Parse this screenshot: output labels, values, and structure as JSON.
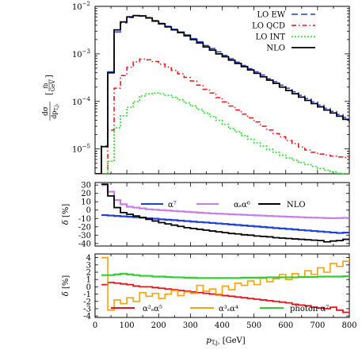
{
  "chart_data": [
    {
      "type": "line",
      "panel": "main",
      "ylabel": "dσ/dp_T,j1 [fb/GeV]",
      "yscale": "log",
      "ylim": [
        3e-06,
        0.01
      ],
      "xlim": [
        0,
        800
      ],
      "yticks": [
        {
          "v": 1e-05,
          "label": "10",
          "exp": "−5"
        },
        {
          "v": 0.0001,
          "label": "10",
          "exp": "−4"
        },
        {
          "v": 0.001,
          "label": "10",
          "exp": "−3"
        },
        {
          "v": 0.01,
          "label": "10",
          "exp": "−2"
        }
      ],
      "legend_position": "top-right",
      "series": [
        {
          "name": "LO EW",
          "color": "#1f3fd6",
          "dash": "8,4",
          "width": 1.5,
          "x": [
            0,
            20,
            40,
            60,
            80,
            100,
            120,
            140,
            160,
            180,
            200,
            220,
            240,
            260,
            280,
            300,
            320,
            340,
            360,
            380,
            400,
            420,
            440,
            460,
            480,
            500,
            520,
            540,
            560,
            580,
            600,
            620,
            640,
            660,
            680,
            700,
            720,
            740,
            760,
            780,
            800
          ],
          "y": [
            2.8e-06,
            1.15e-05,
            0.00042,
            0.0029,
            0.0045,
            0.0058,
            0.0063,
            0.0062,
            0.0058,
            0.005,
            0.0044,
            0.0038,
            0.0033,
            0.0029,
            0.0025,
            0.0021,
            0.0018,
            0.0015,
            0.0013,
            0.0011,
            0.00093,
            0.00079,
            0.00067,
            0.00057,
            0.00049,
            0.00042,
            0.00036,
            0.0003,
            0.00026,
            0.00022,
            0.00019,
            0.00016,
            0.000135,
            0.000115,
            9.8e-05,
            8.4e-05,
            7.2e-05,
            6.2e-05,
            5.3e-05,
            4.6e-05,
            4e-05
          ]
        },
        {
          "name": "LO QCD",
          "color": "#e8121b",
          "dash": "6,3,1.5,3",
          "width": 1.5,
          "x": [
            20,
            40,
            60,
            80,
            100,
            120,
            140,
            160,
            180,
            200,
            220,
            240,
            260,
            280,
            300,
            320,
            340,
            360,
            380,
            400,
            420,
            440,
            460,
            480,
            500,
            520,
            540,
            560,
            580,
            600,
            620,
            640,
            660,
            680,
            700,
            720,
            740,
            760,
            780,
            800
          ],
          "y": [
            3e-06,
            2.5e-05,
            0.00019,
            0.00035,
            0.00052,
            0.00068,
            0.00078,
            0.00075,
            0.00069,
            0.00061,
            0.00053,
            0.00045,
            0.00038,
            0.00032,
            0.00027,
            0.00022,
            0.00018,
            0.00015,
            0.00012,
            9.8e-05,
            8e-05,
            6.6e-05,
            5.4e-05,
            4.5e-05,
            3.7e-05,
            3e-05,
            2.5e-05,
            2.1e-05,
            1.8e-05,
            1.5e-05,
            1.3e-05,
            1.1e-05,
            9.5e-06,
            8.5e-06,
            7.8e-06,
            7.4e-06,
            7.1e-06,
            6.8e-06,
            6.6e-06,
            6.2e-06
          ]
        },
        {
          "name": "LO INT",
          "color": "#2bdc2b",
          "dash": "2,2",
          "width": 1.6,
          "x": [
            20,
            40,
            60,
            80,
            100,
            120,
            140,
            160,
            180,
            200,
            220,
            240,
            260,
            280,
            300,
            320,
            340,
            360,
            380,
            400,
            420,
            440,
            460,
            480,
            500,
            520,
            540,
            560,
            580,
            600,
            620,
            640,
            660,
            680,
            700,
            720,
            740,
            760,
            780,
            800
          ],
          "y": [
            3e-06,
            5.5e-06,
            2.8e-05,
            5e-05,
            7.5e-05,
            0.0001,
            0.00013,
            0.000145,
            0.00015,
            0.000145,
            0.000135,
            0.000122,
            0.000108,
            9.3e-05,
            8e-05,
            6.8e-05,
            5.7e-05,
            4.8e-05,
            4e-05,
            3.3e-05,
            2.7e-05,
            2.3e-05,
            1.9e-05,
            1.6e-05,
            1.35e-05,
            1.15e-05,
            9.8e-06,
            8.5e-06,
            7.4e-06,
            6.5e-06,
            5.8e-06,
            5.2e-06,
            4.7e-06,
            4.3e-06,
            3.9e-06,
            3.6e-06,
            3.3e-06,
            3.1e-06,
            2.9e-06,
            2.8e-06
          ]
        },
        {
          "name": "NLO",
          "color": "#000000",
          "dash": "",
          "width": 1.8,
          "x": [
            0,
            20,
            40,
            60,
            80,
            100,
            120,
            140,
            160,
            180,
            200,
            220,
            240,
            260,
            280,
            300,
            320,
            340,
            360,
            380,
            400,
            420,
            440,
            460,
            480,
            500,
            520,
            540,
            560,
            580,
            600,
            620,
            640,
            660,
            680,
            700,
            720,
            740,
            760,
            780,
            800
          ],
          "y": [
            2.8e-06,
            1.12e-05,
            0.0004,
            0.0032,
            0.0047,
            0.006,
            0.0064,
            0.0063,
            0.0057,
            0.0049,
            0.0043,
            0.0037,
            0.0032,
            0.0028,
            0.0024,
            0.002,
            0.0017,
            0.0014,
            0.0012,
            0.001,
            0.00087,
            0.00074,
            0.00063,
            0.00054,
            0.00046,
            0.00039,
            0.00033,
            0.00028,
            0.00024,
            0.0002,
            0.00017,
            0.000145,
            0.000123,
            0.000105,
            9e-05,
            7.7e-05,
            6.6e-05,
            5.7e-05,
            4.9e-05,
            4.2e-05,
            3.6e-05
          ]
        }
      ]
    },
    {
      "type": "line",
      "panel": "ratio1",
      "ylabel": "δ [%]",
      "ylim": [
        -43,
        33
      ],
      "yticks": [
        -40,
        -30,
        -20,
        -10,
        0,
        10,
        20,
        30
      ],
      "xlim": [
        0,
        800
      ],
      "legend_position": "top",
      "series": [
        {
          "name": "α⁷",
          "color": "#1f3fd6",
          "width": 2.2,
          "x": [
            20,
            40,
            60,
            80,
            100,
            120,
            140,
            160,
            180,
            200,
            220,
            240,
            260,
            280,
            300,
            320,
            340,
            360,
            380,
            400,
            420,
            440,
            460,
            480,
            500,
            520,
            540,
            560,
            580,
            600,
            620,
            640,
            660,
            680,
            700,
            720,
            740,
            760,
            780,
            800
          ],
          "y": [
            -6,
            -6.5,
            -7,
            -7.5,
            -8,
            -8.5,
            -9,
            -9.7,
            -10.3,
            -11,
            -11.5,
            -12,
            -12.6,
            -13.2,
            -13.8,
            -14.3,
            -14.8,
            -15.4,
            -16,
            -16.6,
            -17.2,
            -17.8,
            -18.4,
            -19,
            -19.6,
            -20.2,
            -20.8,
            -21.5,
            -22,
            -22.6,
            -23.2,
            -23.8,
            -24.4,
            -25,
            -25.6,
            -26.2,
            -26.8,
            -27.4,
            -27,
            -26
          ]
        },
        {
          "name": "αₛα⁶",
          "color": "#c77ee8",
          "width": 2.2,
          "x": [
            20,
            40,
            60,
            80,
            100,
            120,
            140,
            160,
            180,
            200,
            220,
            240,
            260,
            280,
            300,
            320,
            340,
            360,
            380,
            400,
            420,
            440,
            460,
            480,
            500,
            520,
            540,
            560,
            580,
            600,
            620,
            640,
            660,
            680,
            700,
            720,
            740,
            760,
            780,
            800
          ],
          "y": [
            30,
            22,
            12,
            7,
            4,
            3,
            2,
            1,
            0.5,
            0,
            -0.5,
            -1,
            -1.5,
            -2,
            -2.5,
            -3,
            -3.5,
            -4,
            -4.3,
            -4.6,
            -5,
            -5.3,
            -5.6,
            -6,
            -6.3,
            -6.6,
            -7,
            -7.3,
            -7.6,
            -8,
            -8.2,
            -8.5,
            -8.8,
            -9,
            -9.2,
            -9.5,
            -9.7,
            -9.5,
            -9.2,
            -9
          ]
        },
        {
          "name": "NLO",
          "color": "#000000",
          "width": 1.8,
          "x": [
            20,
            40,
            60,
            80,
            100,
            120,
            140,
            160,
            180,
            200,
            220,
            240,
            260,
            280,
            300,
            320,
            340,
            360,
            380,
            400,
            420,
            440,
            460,
            480,
            500,
            520,
            540,
            560,
            580,
            600,
            620,
            640,
            660,
            680,
            700,
            720,
            740,
            760,
            780,
            800
          ],
          "y": [
            31,
            17,
            3,
            -3,
            -5,
            -7,
            -9,
            -11,
            -13,
            -15,
            -16.5,
            -18,
            -19.5,
            -21,
            -22,
            -23,
            -24,
            -25,
            -26,
            -27,
            -28,
            -28.5,
            -29.5,
            -30,
            -31,
            -31.5,
            -32,
            -33,
            -33.5,
            -34,
            -34.5,
            -35,
            -35.5,
            -36,
            -36.5,
            -38,
            -37,
            -36.5,
            -35,
            -34
          ]
        }
      ]
    },
    {
      "type": "line",
      "panel": "ratio2",
      "ylabel": "δ [%]",
      "ylim": [
        -4.2,
        4.5
      ],
      "yticks": [
        -4,
        -3,
        -2,
        -1,
        0,
        1,
        2,
        3,
        4
      ],
      "xlim": [
        0,
        800
      ],
      "xticks": [
        0,
        100,
        200,
        300,
        400,
        500,
        600,
        700,
        800
      ],
      "xlabel": "p_T,j1 [GeV]",
      "legend_position": "bottom",
      "series": [
        {
          "name": "α²ₛα⁵",
          "color": "#e8121b",
          "width": 1.8,
          "x": [
            20,
            40,
            60,
            80,
            100,
            120,
            140,
            160,
            180,
            200,
            220,
            240,
            260,
            280,
            300,
            320,
            340,
            360,
            380,
            400,
            420,
            440,
            460,
            480,
            500,
            520,
            540,
            560,
            580,
            600,
            620,
            640,
            660,
            680,
            700,
            720,
            740,
            760,
            780,
            800
          ],
          "y": [
            0.3,
            0.6,
            0.5,
            0.4,
            0.3,
            0.1,
            0,
            0,
            -0.1,
            -0.2,
            -0.3,
            -0.4,
            -0.5,
            -0.6,
            -0.7,
            -0.8,
            -0.9,
            -1.0,
            -1.1,
            -1.2,
            -1.3,
            -1.4,
            -1.5,
            -1.6,
            -1.7,
            -1.8,
            -1.9,
            -2.0,
            -2.1,
            -2.2,
            -2.4,
            -2.5,
            -2.6,
            -2.8,
            -2.9,
            -3.0,
            -2.8,
            -3.2,
            -3.5,
            -3.6
          ]
        },
        {
          "name": "α³ₛα⁴",
          "color": "#f4a010",
          "width": 1.6,
          "x": [
            20,
            40,
            60,
            80,
            100,
            120,
            140,
            160,
            180,
            200,
            220,
            240,
            260,
            280,
            300,
            320,
            340,
            360,
            380,
            400,
            420,
            440,
            460,
            480,
            500,
            520,
            540,
            560,
            580,
            600,
            620,
            640,
            660,
            680,
            700,
            720,
            740,
            760,
            780,
            800
          ],
          "y": [
            4.0,
            -3.2,
            -1.8,
            -2.3,
            -1.5,
            -2.0,
            -0.8,
            -1.3,
            -0.9,
            -1.6,
            -1.0,
            -0.5,
            -1.2,
            -0.7,
            -0.9,
            0.2,
            -0.6,
            -0.3,
            -1.0,
            0.1,
            -0.4,
            0.5,
            0.2,
            0.8,
            0.3,
            1.3,
            0.7,
            1.1,
            1.7,
            1.0,
            1.8,
            1.3,
            2.2,
            1.7,
            2.6,
            2.0,
            3.2,
            2.8,
            3.5,
            3.9
          ]
        },
        {
          "name": "photon α⁷",
          "color": "#33cc33",
          "width": 2.2,
          "x": [
            20,
            40,
            60,
            80,
            100,
            120,
            140,
            160,
            180,
            200,
            220,
            240,
            260,
            280,
            300,
            320,
            340,
            360,
            380,
            400,
            420,
            440,
            460,
            480,
            500,
            520,
            540,
            560,
            580,
            600,
            620,
            640,
            660,
            680,
            700,
            720,
            740,
            760,
            780,
            800
          ],
          "y": [
            1.6,
            1.6,
            1.7,
            1.8,
            1.7,
            1.6,
            1.5,
            1.5,
            1.4,
            1.4,
            1.35,
            1.3,
            1.3,
            1.25,
            1.25,
            1.2,
            1.2,
            1.2,
            1.2,
            1.2,
            1.2,
            1.2,
            1.25,
            1.25,
            1.25,
            1.25,
            1.3,
            1.3,
            1.3,
            1.3,
            1.3,
            1.35,
            1.35,
            1.35,
            1.4,
            1.4,
            1.4,
            1.4,
            1.45,
            1.45
          ]
        }
      ]
    }
  ]
}
